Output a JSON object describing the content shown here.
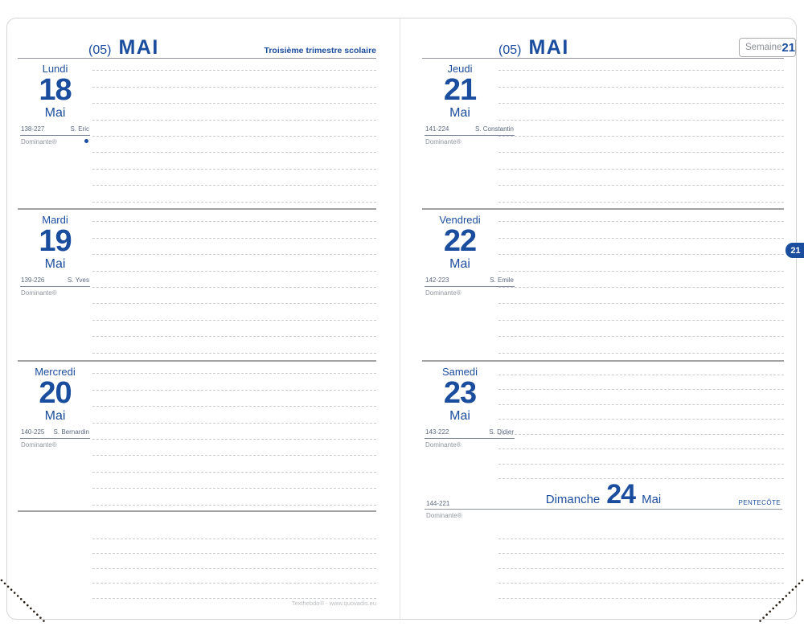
{
  "colors": {
    "brand_blue": "#1b4d9e",
    "slate_text": "#5a6780",
    "muted_gray": "#8f959d"
  },
  "left_page": {
    "month_code": "(05)",
    "month_name": "MAI",
    "term_note": "Troisième trimestre scolaire",
    "days": [
      {
        "name": "Lundi",
        "number": "18",
        "month": "Mai",
        "codes": "138-227",
        "saint": "S. Eric",
        "dominante": "Dominante®",
        "new_moon": true
      },
      {
        "name": "Mardi",
        "number": "19",
        "month": "Mai",
        "codes": "139-226",
        "saint": "S. Yves",
        "dominante": "Dominante®"
      },
      {
        "name": "Mercredi",
        "number": "20",
        "month": "Mai",
        "codes": "140-225",
        "saint": "S. Bernardin",
        "dominante": "Dominante®"
      }
    ],
    "footer": "Texthebdo® - www.quovadis.eu"
  },
  "right_page": {
    "month_code": "(05)",
    "month_name": "MAI",
    "week_box": {
      "label": "Semaine",
      "number": "21"
    },
    "days": [
      {
        "name": "Jeudi",
        "number": "21",
        "month": "Mai",
        "codes": "141-224",
        "saint": "S. Constantin",
        "dominante": "Dominante®"
      },
      {
        "name": "Vendredi",
        "number": "22",
        "month": "Mai",
        "codes": "142-223",
        "saint": "S. Emile",
        "dominante": "Dominante®"
      },
      {
        "name": "Samedi",
        "number": "23",
        "month": "Mai",
        "codes": "143-222",
        "saint": "S. Didier",
        "dominante": "Dominante®"
      }
    ],
    "sunday": {
      "name": "Dimanche",
      "number": "24",
      "month": "Mai",
      "codes": "144-221",
      "holiday": "PENTECÔTE",
      "dominante": "Dominante®"
    },
    "week_tab": "21"
  }
}
